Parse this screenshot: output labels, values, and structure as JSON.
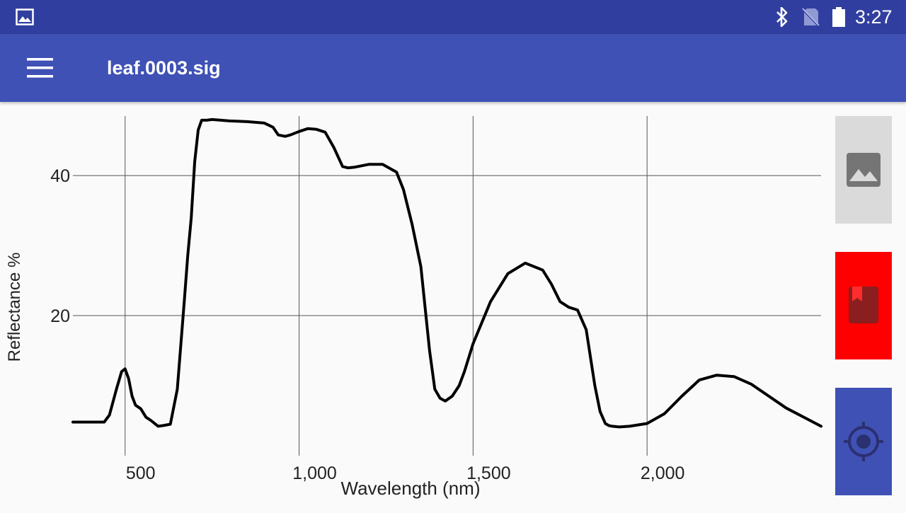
{
  "status_bar": {
    "time": "3:27",
    "icons": [
      "image-notification-icon",
      "bluetooth-icon",
      "no-sim-icon",
      "battery-icon"
    ]
  },
  "app_bar": {
    "title": "leaf.0003.sig",
    "menu_icon": "hamburger-menu-icon"
  },
  "side_buttons": [
    {
      "name": "gallery-button",
      "icon": "image-icon",
      "color": "#dadada"
    },
    {
      "name": "bookmark-button",
      "icon": "bookmark-icon",
      "color": "#ff0000"
    },
    {
      "name": "locate-button",
      "icon": "gps-crosshair-icon",
      "color": "#3f51b5"
    }
  ],
  "colors": {
    "status_bar": "#303f9f",
    "app_bar": "#3f51b5",
    "line": "#000000",
    "grid": "#555555"
  },
  "chart_data": {
    "type": "line",
    "title": "",
    "xlabel": "Wavelength (nm)",
    "ylabel": "Reflectance %",
    "xlim": [
      350,
      2500
    ],
    "ylim": [
      0,
      48.5
    ],
    "x_ticks": [
      500,
      1000,
      1500,
      2000
    ],
    "x_tick_labels": [
      "500",
      "1,000",
      "1,500",
      "2,000"
    ],
    "y_ticks": [
      20,
      40
    ],
    "y_tick_labels": [
      "20",
      "40"
    ],
    "grid": true,
    "legend": "none",
    "series": [
      {
        "x": [
          350,
          400,
          440,
          455,
          475,
          490,
          500,
          510,
          520,
          530,
          545,
          560,
          575,
          595,
          610,
          630,
          650,
          670,
          680,
          690,
          700,
          710,
          720,
          735,
          750,
          800,
          850,
          900,
          925,
          940,
          960,
          975,
          1000,
          1025,
          1050,
          1075,
          1100,
          1125,
          1140,
          1160,
          1200,
          1240,
          1280,
          1300,
          1325,
          1350,
          1375,
          1390,
          1405,
          1420,
          1440,
          1460,
          1475,
          1500,
          1550,
          1600,
          1650,
          1700,
          1725,
          1750,
          1775,
          1800,
          1825,
          1850,
          1865,
          1880,
          1890,
          1900,
          1920,
          1950,
          2000,
          2050,
          2100,
          2150,
          2200,
          2250,
          2300,
          2400,
          2500
        ],
        "y": [
          4.8,
          4.8,
          4.8,
          5.8,
          9.5,
          12.0,
          12.4,
          11.0,
          8.5,
          7.2,
          6.7,
          5.5,
          5.0,
          4.2,
          4.3,
          4.5,
          9.5,
          22.0,
          28.5,
          34.0,
          42.0,
          46.5,
          47.9,
          47.9,
          48.0,
          47.8,
          47.7,
          47.5,
          46.9,
          45.8,
          45.6,
          45.8,
          46.3,
          46.7,
          46.6,
          46.2,
          44.0,
          41.3,
          41.1,
          41.2,
          41.6,
          41.6,
          40.5,
          38.0,
          33.0,
          27.0,
          15.0,
          9.5,
          8.2,
          7.8,
          8.5,
          10.0,
          12.0,
          16.0,
          22.0,
          26.0,
          27.5,
          26.5,
          24.5,
          22.0,
          21.2,
          20.8,
          18.0,
          10.0,
          6.3,
          4.6,
          4.3,
          4.2,
          4.1,
          4.2,
          4.6,
          6.0,
          8.5,
          10.8,
          11.5,
          11.3,
          10.2,
          6.8,
          4.2
        ]
      }
    ]
  }
}
